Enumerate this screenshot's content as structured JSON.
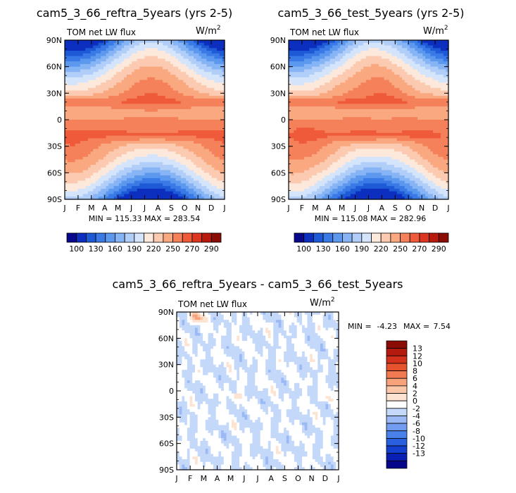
{
  "palettes": {
    "abs": [
      "#08088c",
      "#0c2fbf",
      "#1e5ad6",
      "#3a7ae6",
      "#5c98ee",
      "#86b4f5",
      "#b0cef8",
      "#d4e4fb",
      "#fde9dc",
      "#fbcab0",
      "#f9a880",
      "#f5815a",
      "#ee5a3a",
      "#dc3520",
      "#b81a0d",
      "#8a0c05"
    ],
    "diff": [
      "#06068a",
      "#0a1fb4",
      "#1440d0",
      "#2a60e0",
      "#4a80ea",
      "#729cf0",
      "#9ab9f5",
      "#c4d8fa",
      "#ffffff",
      "#fde3d2",
      "#fbc7a8",
      "#f8a27c",
      "#f27a52",
      "#e8532f",
      "#d4311c",
      "#b41a0e",
      "#8a0c05"
    ]
  },
  "chart_data": [
    {
      "type": "heatmap",
      "panel": "test-left",
      "title": "cam5_3_66_reftra_5years (yrs 2-5)",
      "subtitle": "TOM net LW flux",
      "units_base": "W/m",
      "units_sup": "2",
      "x_ticks": [
        "J",
        "F",
        "M",
        "A",
        "M",
        "J",
        "J",
        "A",
        "S",
        "O",
        "N",
        "D",
        "J"
      ],
      "y_ticks": [
        "90N",
        "60N",
        "30N",
        "0",
        "30S",
        "60S",
        "90S"
      ],
      "y_values": [
        90,
        60,
        30,
        0,
        -30,
        -60,
        -90
      ],
      "xlim": [
        0,
        12
      ],
      "ylim": [
        -90,
        90
      ],
      "stats": "MIN = 115.33 MAX = 283.54",
      "min": 115.33,
      "max": 283.54,
      "levels": [
        100,
        115,
        130,
        145,
        160,
        175,
        190,
        205,
        220,
        235,
        250,
        260,
        270,
        280,
        290
      ],
      "colorbar_labels": [
        "100",
        "130",
        "160",
        "190",
        "220",
        "250",
        "270",
        "290"
      ],
      "palette": "abs",
      "field": "toa_lw_zonal_seasonal"
    },
    {
      "type": "heatmap",
      "panel": "test-right",
      "title": "cam5_3_66_test_5years (yrs 2-5)",
      "subtitle": "TOM net LW flux",
      "units_base": "W/m",
      "units_sup": "2",
      "x_ticks": [
        "J",
        "F",
        "M",
        "A",
        "M",
        "J",
        "J",
        "A",
        "S",
        "O",
        "N",
        "D",
        "J"
      ],
      "y_ticks": [
        "90N",
        "60N",
        "30N",
        "0",
        "30S",
        "60S",
        "90S"
      ],
      "y_values": [
        90,
        60,
        30,
        0,
        -30,
        -60,
        -90
      ],
      "xlim": [
        0,
        12
      ],
      "ylim": [
        -90,
        90
      ],
      "stats": "MIN = 115.08 MAX = 282.96",
      "min": 115.08,
      "max": 282.96,
      "levels": [
        100,
        115,
        130,
        145,
        160,
        175,
        190,
        205,
        220,
        235,
        250,
        260,
        270,
        280,
        290
      ],
      "colorbar_labels": [
        "100",
        "130",
        "160",
        "190",
        "220",
        "250",
        "270",
        "290"
      ],
      "palette": "abs",
      "field": "toa_lw_zonal_seasonal"
    },
    {
      "type": "heatmap",
      "panel": "difference",
      "title": "cam5_3_66_reftra_5years - cam5_3_66_test_5years",
      "subtitle": "TOM net LW flux",
      "units_base": "W/m",
      "units_sup": "2",
      "x_ticks": [
        "J",
        "F",
        "M",
        "A",
        "M",
        "J",
        "J",
        "A",
        "S",
        "O",
        "N",
        "D",
        "J"
      ],
      "y_ticks": [
        "90N",
        "60N",
        "30N",
        "0",
        "30S",
        "60S",
        "90S"
      ],
      "y_values": [
        90,
        60,
        30,
        0,
        -30,
        -60,
        -90
      ],
      "xlim": [
        0,
        12
      ],
      "ylim": [
        -90,
        90
      ],
      "stats_label": "MIN =",
      "stats_min": "-4.23",
      "stats_max_label": "MAX =",
      "stats_max": "7.54",
      "min": -4.23,
      "max": 7.54,
      "levels": [
        -13,
        -12,
        -10,
        -8,
        -6,
        -4,
        -2,
        0,
        2,
        4,
        6,
        8,
        10,
        12,
        13
      ],
      "colorbar_labels": [
        "13",
        "12",
        "10",
        "8",
        "6",
        "4",
        "2",
        "0",
        "-2",
        "-4",
        "-6",
        "-8",
        "-10",
        "-12",
        "-13"
      ],
      "palette": "diff",
      "field": "difference_noise"
    }
  ]
}
